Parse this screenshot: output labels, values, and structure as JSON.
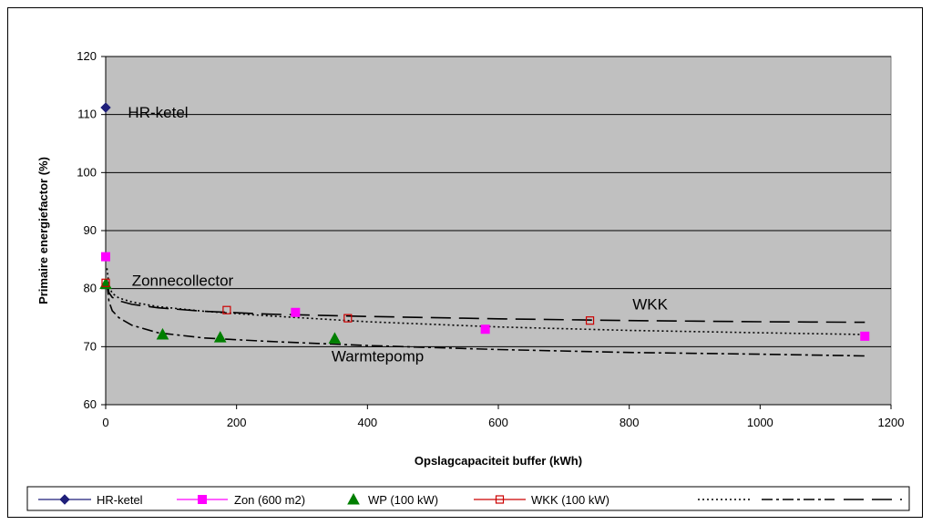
{
  "chart_data": {
    "type": "scatter",
    "xlabel": "Opslagcapaciteit buffer (kWh)",
    "ylabel": "Primaire energiefactor (%)",
    "xlim": [
      0,
      1200
    ],
    "ylim": [
      60,
      120
    ],
    "x_ticks": [
      "0",
      "200",
      "400",
      "600",
      "800",
      "1000",
      "1200"
    ],
    "y_ticks": [
      "60",
      "70",
      "80",
      "90",
      "100",
      "110",
      "120"
    ],
    "plot_background": "#c0c0c0",
    "grid": "horizontal",
    "legend_position": "bottom",
    "series": [
      {
        "name": "HR-ketel",
        "kind": "marker",
        "marker": "diamond",
        "color": "#1f1f7a",
        "x": [
          0
        ],
        "y": [
          111.2
        ]
      },
      {
        "name": "Zon (600 m2)",
        "kind": "marker",
        "marker": "square",
        "color": "#ff00ff",
        "x": [
          0,
          290,
          580,
          1160
        ],
        "y": [
          85.5,
          75.9,
          73.0,
          71.8
        ]
      },
      {
        "name": "WP (100 kW)",
        "kind": "marker",
        "marker": "triangle",
        "color": "#007f00",
        "x": [
          0,
          87,
          175,
          350
        ],
        "y": [
          80.8,
          72.1,
          71.6,
          71.4
        ]
      },
      {
        "name": "WKK (100 kW)",
        "kind": "marker",
        "marker": "open-square",
        "color": "#cc0000",
        "x": [
          0,
          185,
          370,
          740
        ],
        "y": [
          81.0,
          76.3,
          74.9,
          74.5
        ]
      },
      {
        "name": "",
        "kind": "line",
        "dash": "2,3",
        "color": "#000000",
        "x": [
          2,
          5,
          10,
          20,
          40,
          80,
          150,
          250,
          400,
          600,
          800,
          1000,
          1160
        ],
        "y": [
          83.5,
          80.5,
          79.2,
          78.4,
          77.7,
          76.9,
          76.1,
          75.3,
          74.3,
          73.4,
          72.8,
          72.4,
          72.1
        ]
      },
      {
        "name": "",
        "kind": "line",
        "dash": "12,4,3,4",
        "color": "#000000",
        "x": [
          2,
          5,
          10,
          20,
          40,
          80,
          150,
          250,
          400,
          600,
          800,
          1000,
          1160
        ],
        "y": [
          80.8,
          77.8,
          76.2,
          75.0,
          73.7,
          72.4,
          71.5,
          70.9,
          70.2,
          69.5,
          69.0,
          68.7,
          68.4
        ]
      },
      {
        "name": "",
        "kind": "line",
        "dash": "22,9",
        "color": "#000000",
        "x": [
          2,
          5,
          10,
          20,
          40,
          80,
          150,
          250,
          400,
          600,
          800,
          1000,
          1160
        ],
        "y": [
          81.5,
          79.3,
          78.5,
          77.9,
          77.3,
          76.7,
          76.1,
          75.6,
          75.2,
          74.8,
          74.5,
          74.3,
          74.2
        ]
      }
    ],
    "annotations": [
      {
        "text": "HR-ketel",
        "x": 34,
        "y": 109.5
      },
      {
        "text": "Zonnecollector",
        "x": 40,
        "y": 80.5
      },
      {
        "text": "WKK",
        "x": 805,
        "y": 76.4
      },
      {
        "text": "Warmtepomp",
        "x": 345,
        "y": 67.5
      }
    ]
  }
}
